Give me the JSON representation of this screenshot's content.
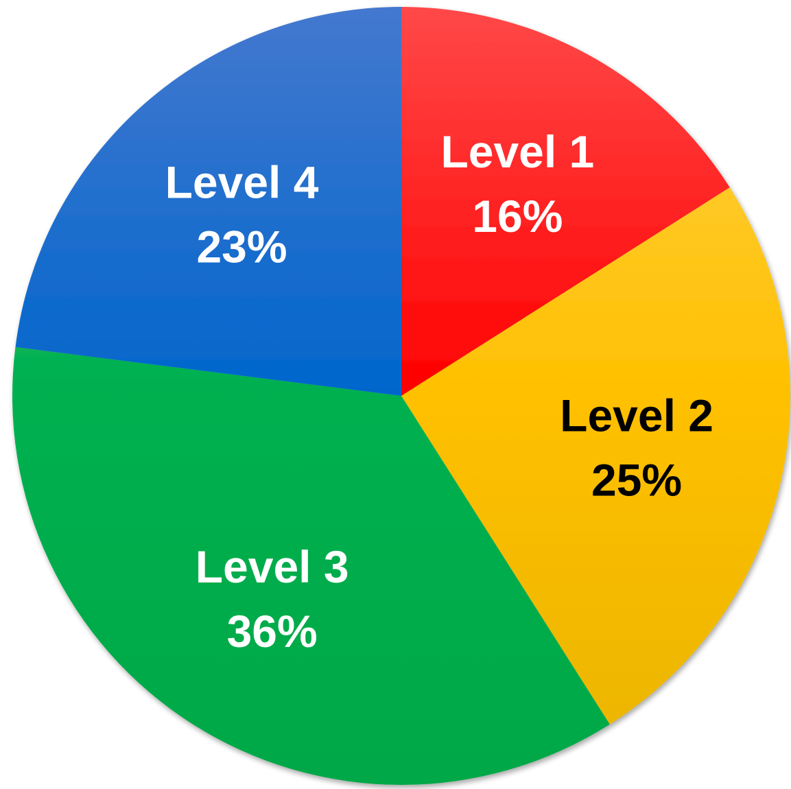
{
  "chart_data": {
    "type": "pie",
    "title": "",
    "start_angle_deg": 0,
    "direction": "clockwise",
    "slices": [
      {
        "category": "Level 1",
        "value": 16,
        "value_label": "16%",
        "color_light": "#ff4848",
        "color": "#ff0000",
        "color_dark": "#e80000",
        "text_color": "#ffffff"
      },
      {
        "category": "Level 2",
        "value": 25,
        "value_label": "25%",
        "color_light": "#ffd047",
        "color": "#ffc000",
        "color_dark": "#e9b400",
        "text_color": "#000000"
      },
      {
        "category": "Level 3",
        "value": 36,
        "value_label": "36%",
        "color_light": "#3cbe64",
        "color": "#00b050",
        "color_dark": "#00a846",
        "text_color": "#ffffff"
      },
      {
        "category": "Level 4",
        "value": 23,
        "value_label": "23%",
        "color_light": "#4478cf",
        "color": "#0066cc",
        "color_dark": "#0058bb",
        "text_color": "#ffffff"
      }
    ]
  }
}
